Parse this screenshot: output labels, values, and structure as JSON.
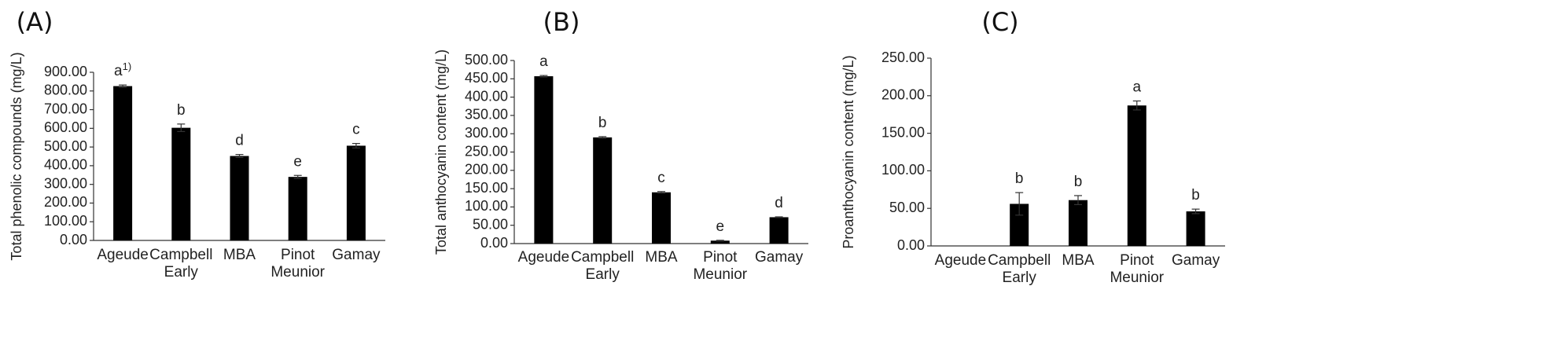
{
  "chart_data": [
    {
      "type": "bar",
      "panel_label": "(A)",
      "categories": [
        [
          "Ageude"
        ],
        [
          "Campbell",
          "Early"
        ],
        [
          "MBA"
        ],
        [
          "Pinot",
          "Meunior"
        ],
        [
          "Gamay"
        ]
      ],
      "values": [
        826,
        603,
        452,
        340,
        507
      ],
      "errors": [
        6,
        20,
        8,
        8,
        12
      ],
      "significance": [
        "a1)",
        "b",
        "d",
        "e",
        "c"
      ],
      "ylabel": "Total phenolic compounds (mg/L)",
      "ylim": [
        0,
        900
      ],
      "yticks": [
        "0.00",
        "100.00",
        "200.00",
        "300.00",
        "400.00",
        "500.00",
        "600.00",
        "700.00",
        "800.00",
        "900.00"
      ]
    },
    {
      "type": "bar",
      "panel_label": "(B)",
      "categories": [
        [
          "Ageude"
        ],
        [
          "Campbell",
          "Early"
        ],
        [
          "MBA"
        ],
        [
          "Pinot",
          "Meunior"
        ],
        [
          "Gamay"
        ]
      ],
      "values": [
        457,
        290,
        140,
        8,
        72
      ],
      "errors": [
        2,
        2,
        2,
        1,
        1
      ],
      "significance": [
        "a",
        "b",
        "c",
        "e",
        "d"
      ],
      "ylabel": "Total anthocyanin content (mg/L)",
      "ylim": [
        0,
        500
      ],
      "yticks": [
        "0.00",
        "50.00",
        "100.00",
        "150.00",
        "200.00",
        "250.00",
        "300.00",
        "350.00",
        "400.00",
        "450.00",
        "500.00"
      ]
    },
    {
      "type": "bar",
      "panel_label": "(C)",
      "categories": [
        [
          "Ageude"
        ],
        [
          "Campbell",
          "Early"
        ],
        [
          "MBA"
        ],
        [
          "Pinot",
          "Meunior"
        ],
        [
          "Gamay"
        ]
      ],
      "values": [
        0,
        56,
        61,
        187,
        46
      ],
      "errors": [
        0,
        15,
        6,
        6,
        3
      ],
      "significance": [
        "",
        "b",
        "b",
        "a",
        "b"
      ],
      "ylabel": "Proanthocyanin content (mg/L)",
      "ylim": [
        0,
        250
      ],
      "yticks": [
        "0.00",
        "50.00",
        "100.00",
        "150.00",
        "200.00",
        "250.00"
      ]
    }
  ]
}
